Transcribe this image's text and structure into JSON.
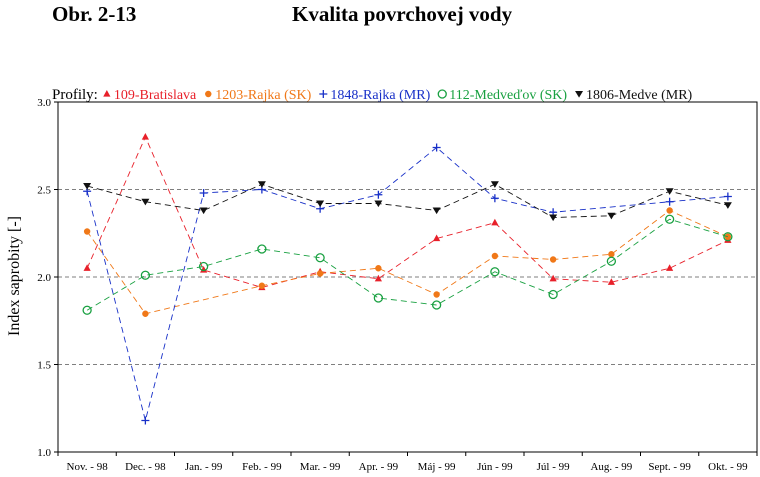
{
  "figure": {
    "label": "Obr. 2-13",
    "title": "Kvalita povrchovej vody"
  },
  "chart_data": {
    "type": "line",
    "legend_prefix": "Profily:",
    "legend_position": "top",
    "ylabel": "Index saprobity [-]",
    "xlabel": "",
    "ylim": [
      1.0,
      3.0
    ],
    "yticks": [
      "1.0",
      "1.5",
      "2.0",
      "2.5",
      "3.0"
    ],
    "reference_lines": [
      1.5,
      2.0,
      2.5
    ],
    "categories": [
      "Nov. - 98",
      "Dec. - 98",
      "Jan. - 99",
      "Feb. - 99",
      "Mar. - 99",
      "Apr. - 99",
      "Máj - 99",
      "Jún - 99",
      "Júl - 99",
      "Aug. - 99",
      "Sept. - 99",
      "Okt. - 99"
    ],
    "series": [
      {
        "name": "109-Bratislava",
        "color": "#e8202a",
        "marker": "triangle",
        "values": [
          2.05,
          2.8,
          2.04,
          1.94,
          2.03,
          1.99,
          2.22,
          2.31,
          1.99,
          1.97,
          2.05,
          2.21
        ]
      },
      {
        "name": "1203-Rajka (SK)",
        "color": "#f07818",
        "marker": "dot",
        "values": [
          2.26,
          1.79,
          null,
          1.95,
          2.02,
          2.05,
          1.9,
          2.12,
          2.1,
          2.13,
          2.38,
          2.23
        ]
      },
      {
        "name": "1848-Rajka (MR)",
        "color": "#1830c8",
        "marker": "plus",
        "values": [
          2.49,
          1.18,
          2.48,
          2.5,
          2.39,
          2.47,
          2.74,
          2.45,
          2.37,
          null,
          2.43,
          2.46
        ]
      },
      {
        "name": "112-Medveďov (SK)",
        "color": "#18a040",
        "marker": "circle",
        "values": [
          1.81,
          2.01,
          2.06,
          2.16,
          2.11,
          1.88,
          1.84,
          2.03,
          1.9,
          2.09,
          2.33,
          2.23
        ]
      },
      {
        "name": "1806-Medve (MR)",
        "color": "#111111",
        "marker": "triangle-down",
        "values": [
          2.52,
          2.43,
          2.38,
          2.53,
          2.42,
          2.42,
          2.38,
          2.53,
          2.34,
          2.35,
          2.49,
          2.41
        ]
      }
    ]
  }
}
